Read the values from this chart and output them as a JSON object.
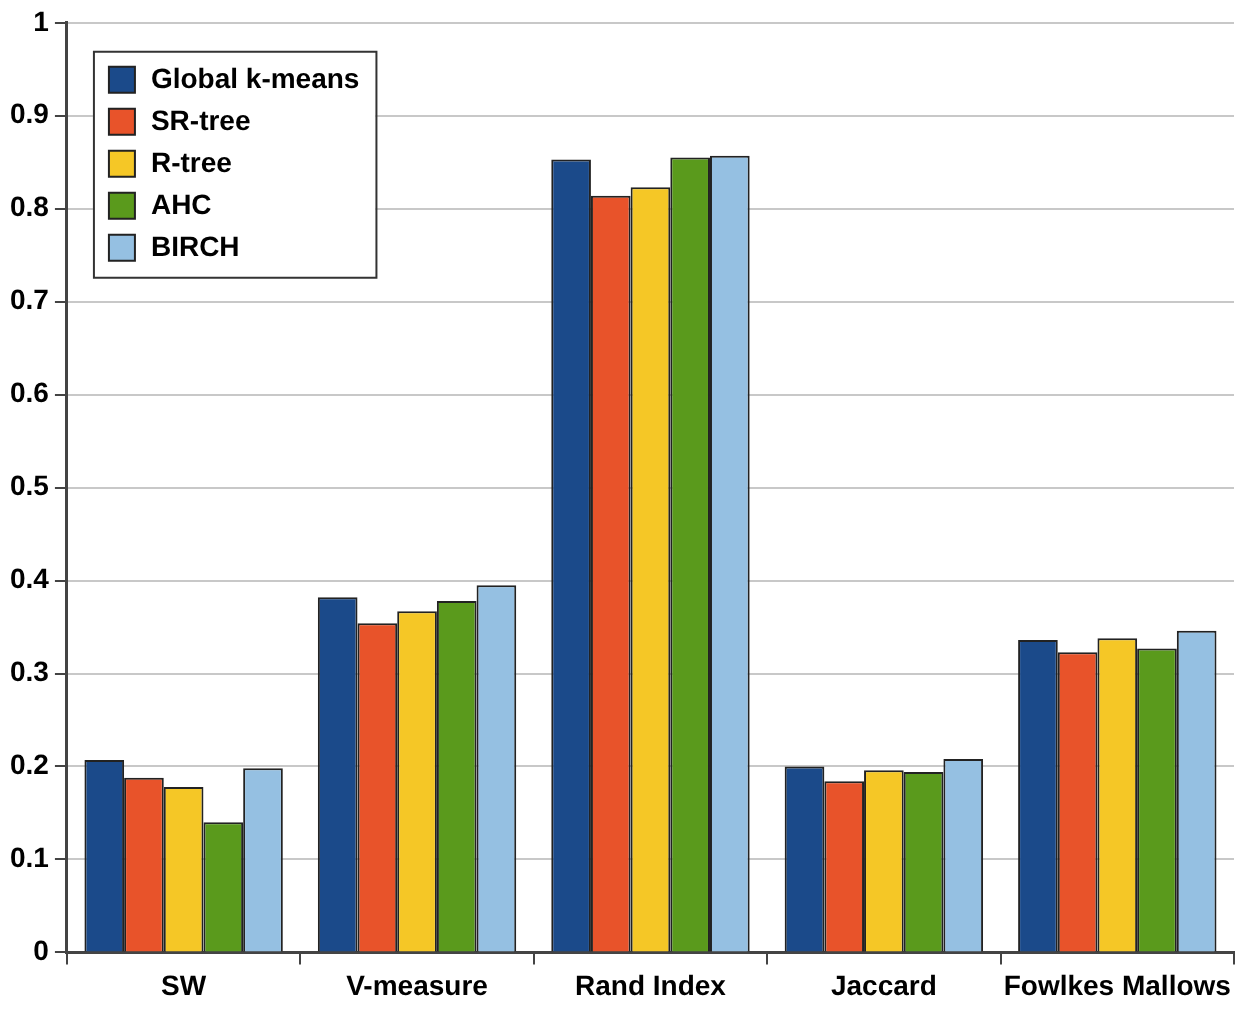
{
  "chart_data": {
    "type": "bar",
    "categories": [
      "SW",
      "V-measure",
      "Rand Index",
      "Jaccard",
      "Fowlkes Mallows"
    ],
    "series": [
      {
        "name": "Global k-means",
        "color": "#1b4a8a",
        "values": [
          0.207,
          0.382,
          0.853,
          0.2,
          0.336
        ]
      },
      {
        "name": "SR-tree",
        "color": "#e8532a",
        "values": [
          0.188,
          0.354,
          0.814,
          0.184,
          0.323
        ]
      },
      {
        "name": "R-tree",
        "color": "#f5c726",
        "values": [
          0.178,
          0.367,
          0.823,
          0.196,
          0.338
        ]
      },
      {
        "name": "AHC",
        "color": "#5a9a1c",
        "values": [
          0.14,
          0.378,
          0.855,
          0.194,
          0.327
        ]
      },
      {
        "name": "BIRCH",
        "color": "#95c0e2",
        "values": [
          0.198,
          0.395,
          0.857,
          0.208,
          0.346
        ]
      }
    ],
    "ylim": [
      0,
      1
    ],
    "yticks": [
      0,
      0.1,
      0.2,
      0.3,
      0.4,
      0.5,
      0.6,
      0.7,
      0.8,
      0.9,
      1
    ],
    "grid": "y",
    "legend": "top left"
  }
}
